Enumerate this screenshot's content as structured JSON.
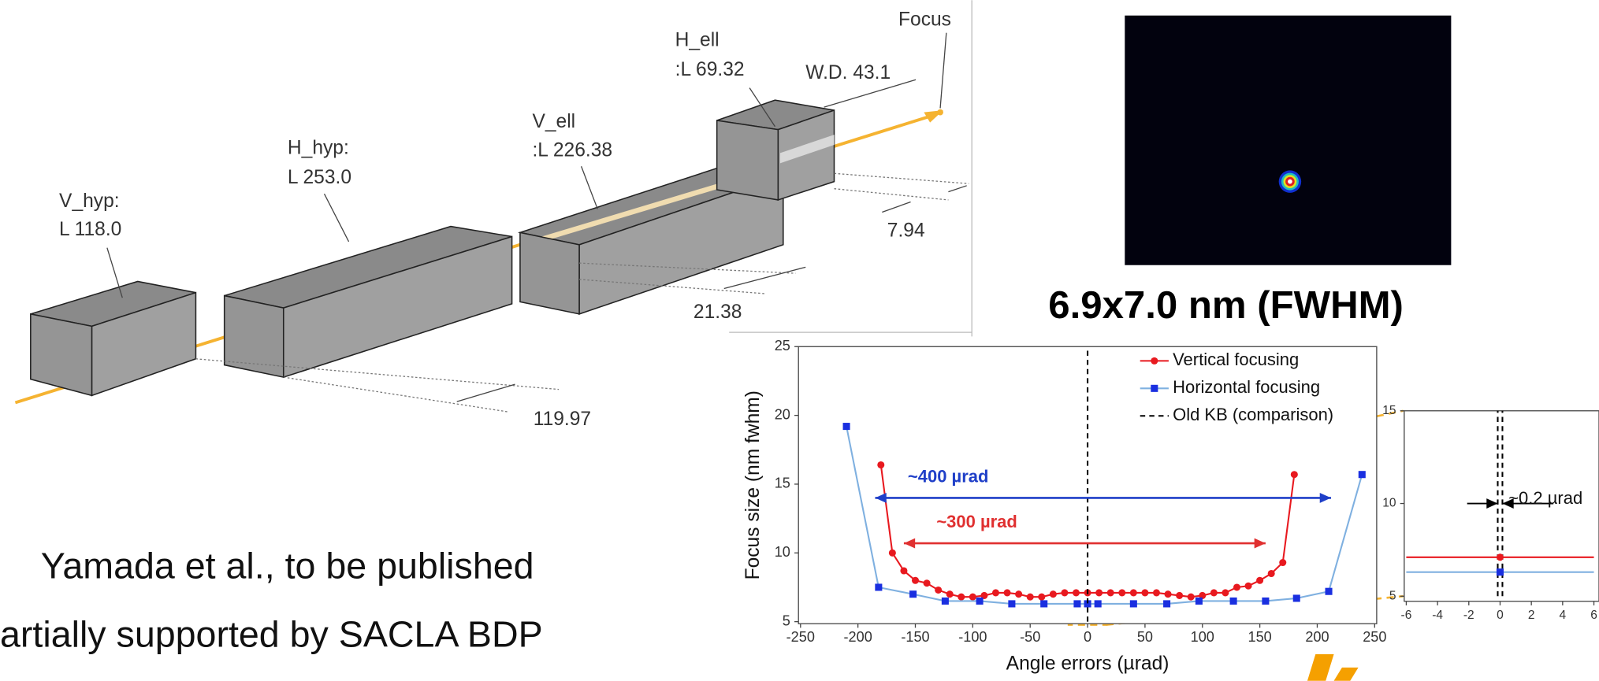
{
  "diagram": {
    "focus": "Focus",
    "h_ell": [
      "H_ell",
      ":L 69.32"
    ],
    "working_distance": "W.D. 43.1",
    "v_ell": [
      "V_ell",
      ":L 226.38"
    ],
    "h_hyp": [
      "H_hyp:",
      "L 253.0"
    ],
    "v_hyp": [
      "V_hyp:",
      "L 118.0"
    ],
    "dimensions": [
      "7.94",
      "21.38",
      "119.97"
    ]
  },
  "image_caption": "6.9x7.0 nm (FWHM)",
  "citation": [
    "Yamada et al., to be published",
    "artially supported by SACLA BDP"
  ],
  "chart_data": [
    {
      "type": "line",
      "x_label": "Angle errors (µrad)",
      "y_label": "Focus size (nm fwhm)",
      "xlim": [
        -250,
        250
      ],
      "xticks": [
        -250,
        -200,
        -150,
        -100,
        -50,
        0,
        50,
        100,
        150,
        200,
        250
      ],
      "ylim": [
        5,
        25
      ],
      "yticks": [
        5,
        10,
        15,
        20,
        25
      ],
      "grid": false,
      "series": [
        {
          "name": "Vertical focusing",
          "color": "#e8191f",
          "marker": "circle",
          "x": [
            -180,
            -170,
            -160,
            -150,
            -140,
            -130,
            -120,
            -110,
            -100,
            -90,
            -80,
            -70,
            -60,
            -50,
            -40,
            -30,
            -20,
            -10,
            0,
            10,
            20,
            30,
            40,
            50,
            60,
            70,
            80,
            90,
            100,
            110,
            120,
            130,
            140,
            150,
            160,
            170,
            180
          ],
          "values": [
            16.4,
            10,
            8.7,
            8,
            7.8,
            7.3,
            7,
            6.8,
            6.8,
            6.9,
            7.1,
            7.1,
            7,
            6.8,
            6.8,
            7,
            7.1,
            7.1,
            7.1,
            7.1,
            7.1,
            7.1,
            7.1,
            7.1,
            7.1,
            7,
            6.9,
            6.8,
            6.9,
            7.1,
            7.1,
            7.5,
            7.6,
            8,
            8.5,
            9.3,
            15.7
          ]
        },
        {
          "name": "Horizontal focusing",
          "color": "#7fb0e0",
          "marker_color": "#1a2fe0",
          "marker": "square",
          "x": [
            -210,
            -182,
            -152,
            -124,
            -94,
            -66,
            -38,
            -9,
            0,
            9,
            40,
            69,
            97,
            127,
            155,
            182,
            210,
            239
          ],
          "values": [
            19.2,
            7.5,
            7,
            6.5,
            6.5,
            6.3,
            6.3,
            6.3,
            6.3,
            6.3,
            6.3,
            6.3,
            6.5,
            6.5,
            6.5,
            6.7,
            7.2,
            15.7
          ]
        },
        {
          "name": "Old KB (comparison)",
          "color": "#000000",
          "dash": true,
          "x": [
            0,
            0
          ],
          "values": [
            5,
            25
          ]
        }
      ],
      "annotations": [
        {
          "kind": "span",
          "text": "~400 µrad",
          "color": "#1f3fc8",
          "x": [
            -185,
            212
          ],
          "y": 14
        },
        {
          "kind": "span",
          "text": "~300 µrad",
          "color": "#e03030",
          "x": [
            -160,
            155
          ],
          "y": 10.7
        }
      ]
    },
    {
      "type": "line",
      "xlim": [
        -6,
        6
      ],
      "xticks": [
        -6,
        -4,
        -2,
        0,
        2,
        4,
        6
      ],
      "ylim": [
        5,
        15
      ],
      "yticks": [
        5,
        10,
        15
      ],
      "grid": false,
      "series": [
        {
          "color": "#e8191f",
          "x": [
            -6,
            6
          ],
          "values": [
            7.1,
            7.1
          ]
        },
        {
          "color": "#7fb0e0",
          "x": [
            -6,
            6
          ],
          "values": [
            6.3,
            6.3
          ]
        },
        {
          "color": "#000000",
          "dash": true,
          "x": [
            -0.15,
            -0.15
          ],
          "values": [
            5,
            15
          ]
        },
        {
          "color": "#000000",
          "dash": true,
          "x": [
            0.15,
            0.15
          ],
          "values": [
            5,
            15
          ]
        },
        {
          "color": "#e8191f",
          "marker": "circle",
          "x": [
            0
          ],
          "values": [
            7.1
          ],
          "no_line": true
        },
        {
          "color": "#1a2fe0",
          "marker": "square",
          "x": [
            0
          ],
          "values": [
            6.3
          ],
          "no_line": true
        }
      ],
      "annotations": [
        {
          "kind": "inward",
          "text": "~0.2 µrad",
          "color": "#000000",
          "x": [
            -0.15,
            0.15
          ],
          "y": 10
        }
      ]
    }
  ]
}
